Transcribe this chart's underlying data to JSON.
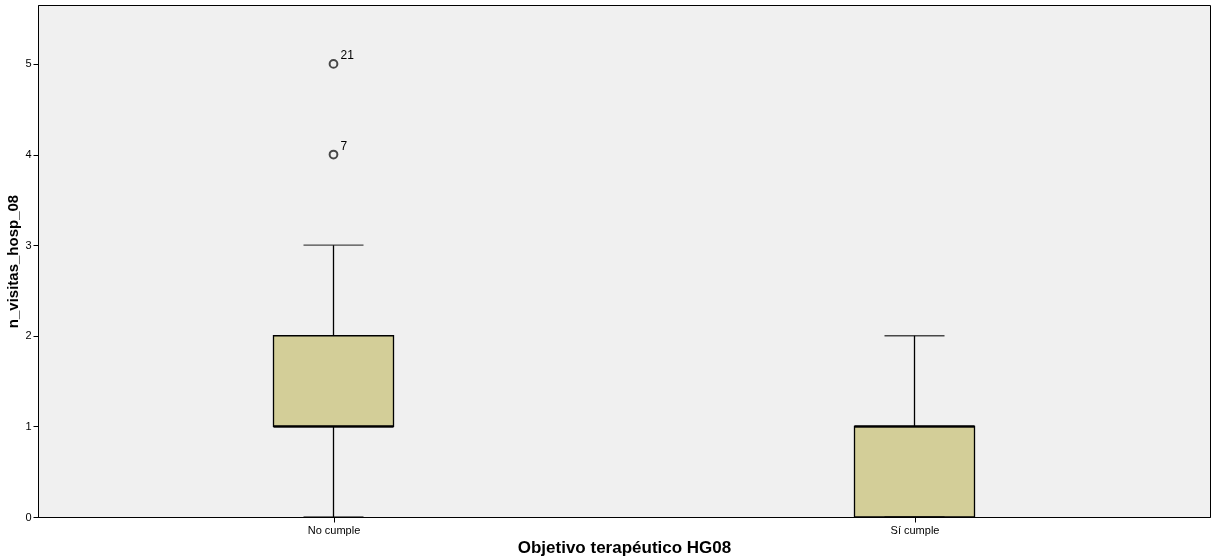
{
  "chart_data": {
    "type": "box",
    "xlabel": "Objetivo terapéutico HG08",
    "ylabel": "n_visitas_hosp_08",
    "categories": [
      "No cumple",
      "Sí cumple"
    ],
    "boxes": [
      {
        "low": 0,
        "q1": 1,
        "median": 1,
        "q3": 2,
        "high": 3,
        "outliers": [
          5,
          4
        ]
      },
      {
        "low": 0,
        "q1": 0,
        "median": 1,
        "q3": 1,
        "high": 2
      }
    ],
    "color": "#d3ce98",
    "annotations": [
      "21",
      "7"
    ],
    "ylim": [
      0,
      5.65
    ],
    "yticks": [
      0,
      1,
      2,
      3,
      4,
      5
    ],
    "grid": false
  }
}
